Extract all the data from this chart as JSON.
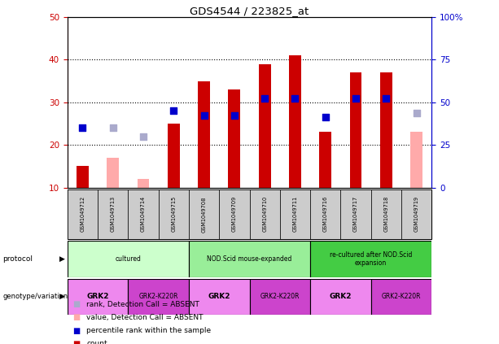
{
  "title": "GDS4544 / 223825_at",
  "samples": [
    "GSM1049712",
    "GSM1049713",
    "GSM1049714",
    "GSM1049715",
    "GSM1049708",
    "GSM1049709",
    "GSM1049710",
    "GSM1049711",
    "GSM1049716",
    "GSM1049717",
    "GSM1049718",
    "GSM1049719"
  ],
  "count_values": [
    15,
    null,
    null,
    25,
    35,
    33,
    39,
    41,
    23,
    37,
    37,
    null
  ],
  "count_absent": [
    null,
    17,
    12,
    null,
    null,
    null,
    null,
    null,
    null,
    null,
    null,
    23
  ],
  "percentile_values": [
    24,
    null,
    null,
    28,
    27,
    27,
    31,
    31,
    26.5,
    31,
    31,
    null
  ],
  "percentile_absent": [
    null,
    24,
    22,
    null,
    null,
    null,
    null,
    null,
    null,
    null,
    null,
    27.5
  ],
  "ylim_left": [
    10,
    50
  ],
  "ylim_right": [
    0,
    100
  ],
  "yticks_left": [
    10,
    20,
    30,
    40,
    50
  ],
  "yticks_right": [
    0,
    25,
    50,
    75,
    100
  ],
  "bar_color": "#cc0000",
  "bar_absent_color": "#ffaaaa",
  "dot_color": "#0000cc",
  "dot_absent_color": "#aaaacc",
  "protocol_groups": [
    {
      "label": "cultured",
      "start": 0,
      "end": 3,
      "color": "#ccffcc"
    },
    {
      "label": "NOD.Scid mouse-expanded",
      "start": 4,
      "end": 7,
      "color": "#99ee99"
    },
    {
      "label": "re-cultured after NOD.Scid\nexpansion",
      "start": 8,
      "end": 11,
      "color": "#44cc44"
    }
  ],
  "genotype_groups": [
    {
      "label": "GRK2",
      "start": 0,
      "end": 1,
      "color": "#ee88ee"
    },
    {
      "label": "GRK2-K220R",
      "start": 2,
      "end": 3,
      "color": "#cc44cc"
    },
    {
      "label": "GRK2",
      "start": 4,
      "end": 5,
      "color": "#ee88ee"
    },
    {
      "label": "GRK2-K220R",
      "start": 6,
      "end": 7,
      "color": "#cc44cc"
    },
    {
      "label": "GRK2",
      "start": 8,
      "end": 9,
      "color": "#ee88ee"
    },
    {
      "label": "GRK2-K220R",
      "start": 10,
      "end": 11,
      "color": "#cc44cc"
    }
  ],
  "legend_items": [
    {
      "label": "count",
      "color": "#cc0000"
    },
    {
      "label": "percentile rank within the sample",
      "color": "#0000cc"
    },
    {
      "label": "value, Detection Call = ABSENT",
      "color": "#ffaaaa"
    },
    {
      "label": "rank, Detection Call = ABSENT",
      "color": "#aaaacc"
    }
  ],
  "sample_box_color": "#cccccc",
  "left_axis_color": "#cc0000",
  "right_axis_color": "#0000cc"
}
